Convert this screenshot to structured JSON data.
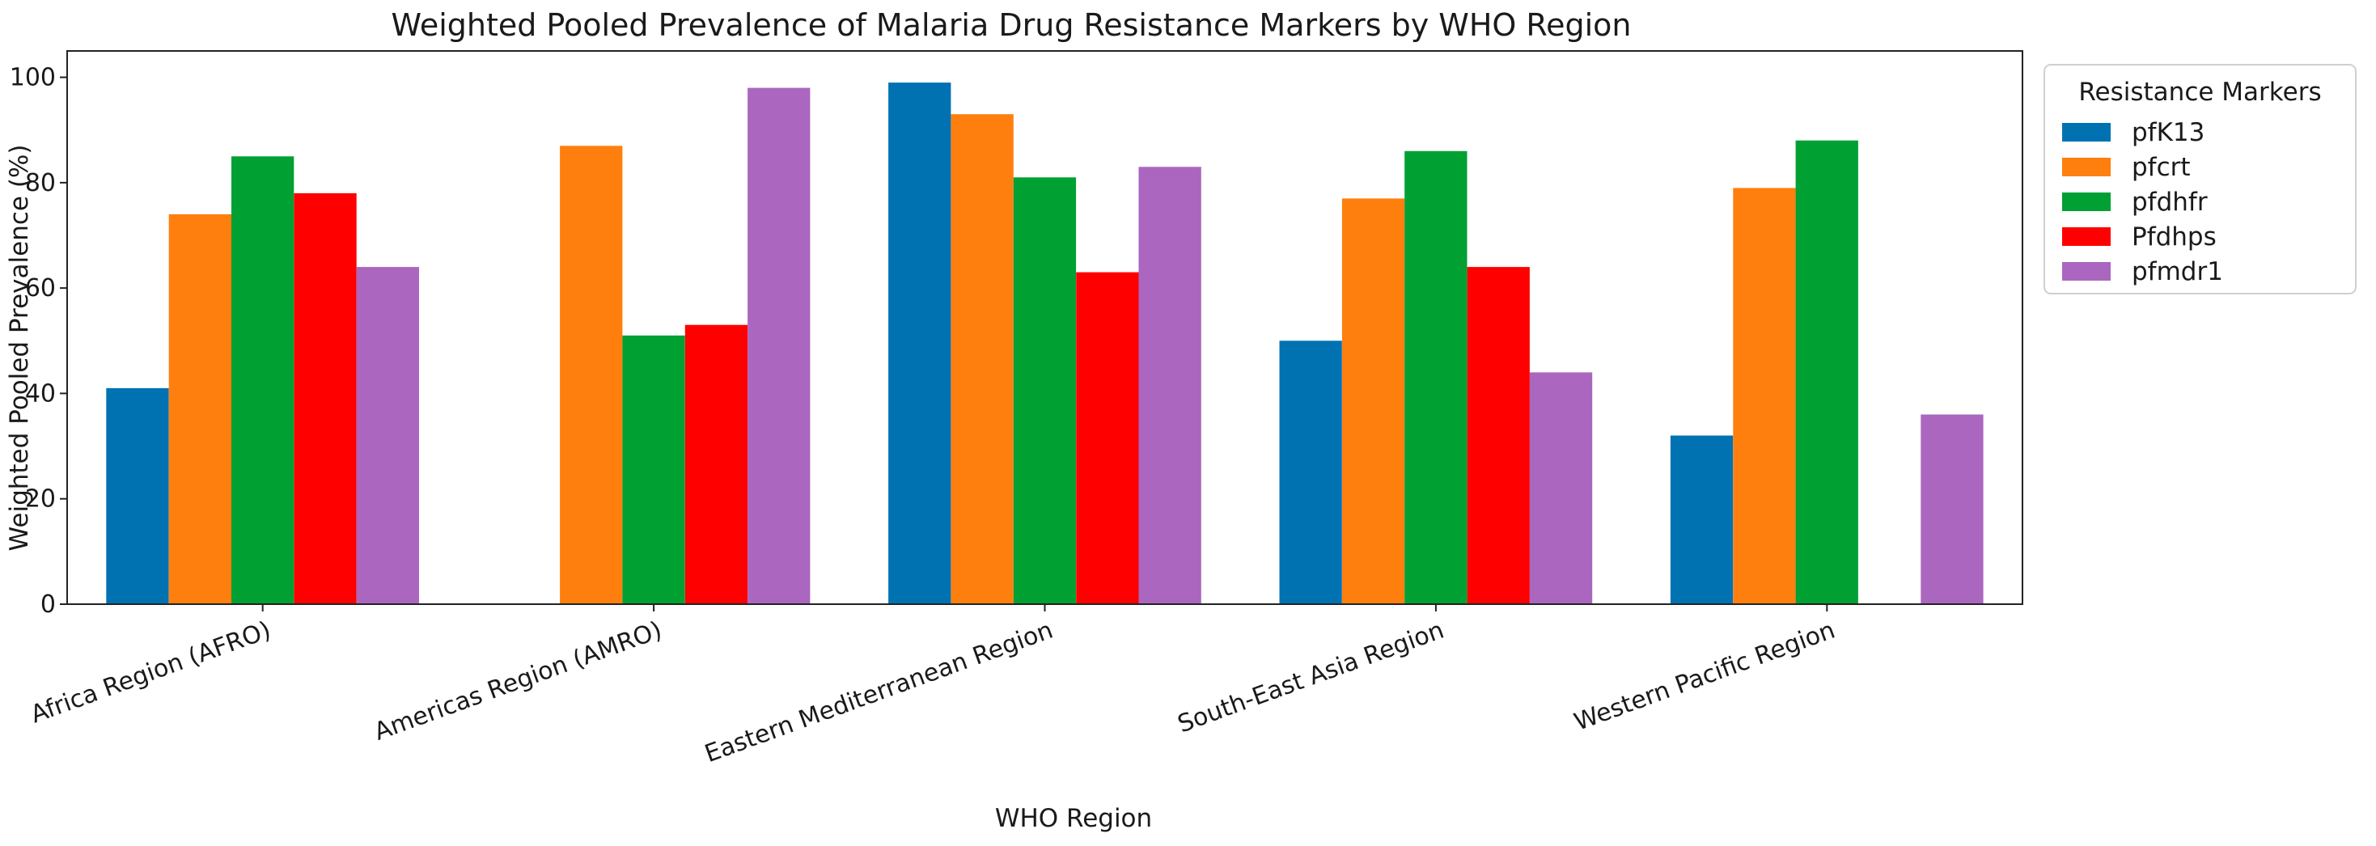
{
  "chart_data": {
    "type": "bar",
    "title": "Weighted Pooled Prevalence of Malaria Drug Resistance Markers by WHO Region",
    "xlabel": "WHO Region",
    "ylabel": "Weighted Pooled Prevalence (%)",
    "ylim": [
      0,
      105
    ],
    "yticks": [
      0,
      20,
      40,
      60,
      80,
      100
    ],
    "grid": false,
    "categories": [
      "Africa Region (AFRO)",
      "Americas Region (AMRO)",
      "Eastern Mediterranean Region",
      "South-East Asia Region",
      "Western Pacific Region"
    ],
    "series": [
      {
        "name": "pfK13",
        "color": "#0072b2",
        "values": [
          41,
          null,
          99,
          50,
          32
        ]
      },
      {
        "name": "pfcrt",
        "color": "#ff7f0e",
        "values": [
          74,
          87,
          93,
          77,
          79
        ]
      },
      {
        "name": "pfdhfr",
        "color": "#00a032",
        "values": [
          85,
          51,
          81,
          86,
          88
        ]
      },
      {
        "name": "Pfdhps",
        "color": "#ff0000",
        "values": [
          78,
          53,
          63,
          64,
          null
        ]
      },
      {
        "name": "pfmdr1",
        "color": "#ab66bf",
        "values": [
          64,
          98,
          83,
          44,
          36
        ]
      }
    ],
    "legend": {
      "title": "Resistance Markers",
      "placement": "outside-right"
    }
  }
}
